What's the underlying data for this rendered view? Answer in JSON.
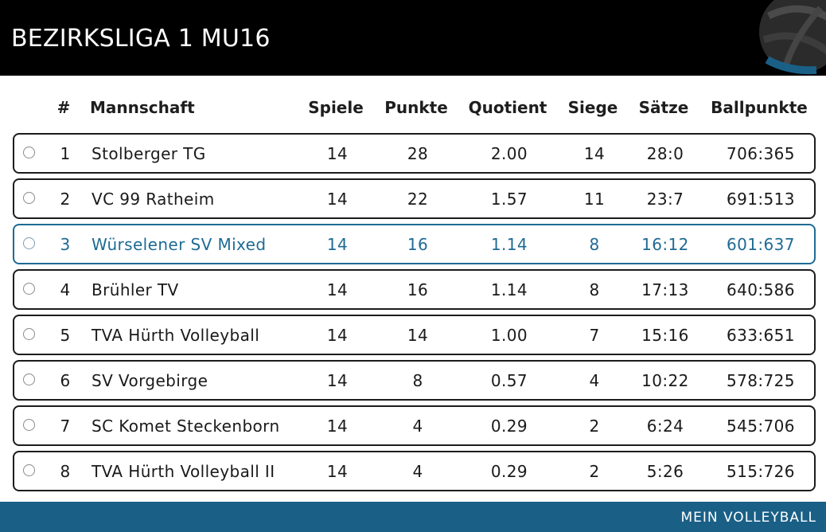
{
  "header": {
    "title": "BEZIRKSLIGA 1 MU16",
    "logo_icon": "volleyball-icon"
  },
  "table": {
    "columns": {
      "rank": "#",
      "team": "Mannschaft",
      "spiele": "Spiele",
      "punkte": "Punkte",
      "quotient": "Quotient",
      "siege": "Siege",
      "saetze": "Sätze",
      "ballpunkte": "Ballpunkte"
    },
    "rows": [
      {
        "rank": "1",
        "team": "Stolberger TG",
        "spiele": "14",
        "punkte": "28",
        "quotient": "2.00",
        "siege": "14",
        "saetze": "28:0",
        "ballpunkte": "706:365",
        "highlighted": false
      },
      {
        "rank": "2",
        "team": "VC 99 Ratheim",
        "spiele": "14",
        "punkte": "22",
        "quotient": "1.57",
        "siege": "11",
        "saetze": "23:7",
        "ballpunkte": "691:513",
        "highlighted": false
      },
      {
        "rank": "3",
        "team": "Würselener SV Mixed",
        "spiele": "14",
        "punkte": "16",
        "quotient": "1.14",
        "siege": "8",
        "saetze": "16:12",
        "ballpunkte": "601:637",
        "highlighted": true
      },
      {
        "rank": "4",
        "team": "Brühler TV",
        "spiele": "14",
        "punkte": "16",
        "quotient": "1.14",
        "siege": "8",
        "saetze": "17:13",
        "ballpunkte": "640:586",
        "highlighted": false
      },
      {
        "rank": "5",
        "team": "TVA Hürth Volleyball",
        "spiele": "14",
        "punkte": "14",
        "quotient": "1.00",
        "siege": "7",
        "saetze": "15:16",
        "ballpunkte": "633:651",
        "highlighted": false
      },
      {
        "rank": "6",
        "team": "SV Vorgebirge",
        "spiele": "14",
        "punkte": "8",
        "quotient": "0.57",
        "siege": "4",
        "saetze": "10:22",
        "ballpunkte": "578:725",
        "highlighted": false
      },
      {
        "rank": "7",
        "team": "SC Komet Steckenborn",
        "spiele": "14",
        "punkte": "4",
        "quotient": "0.29",
        "siege": "2",
        "saetze": "6:24",
        "ballpunkte": "545:706",
        "highlighted": false
      },
      {
        "rank": "8",
        "team": "TVA Hürth Volleyball II",
        "spiele": "14",
        "punkte": "4",
        "quotient": "0.29",
        "siege": "2",
        "saetze": "5:26",
        "ballpunkte": "515:726",
        "highlighted": false
      }
    ]
  },
  "footer": {
    "label": "MEIN VOLLEYBALL"
  },
  "colors": {
    "header_bg": "#000000",
    "accent": "#1e6b94",
    "footer_bg": "#1a5f86",
    "row_border": "#1c1c1c"
  }
}
